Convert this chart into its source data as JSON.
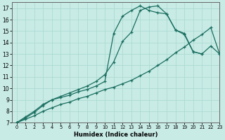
{
  "xlabel": "Humidex (Indice chaleur)",
  "xlim": [
    -0.5,
    23
  ],
  "ylim": [
    7,
    17.5
  ],
  "yticks": [
    7,
    8,
    9,
    10,
    11,
    12,
    13,
    14,
    15,
    16,
    17
  ],
  "xticks": [
    0,
    1,
    2,
    3,
    4,
    5,
    6,
    7,
    8,
    9,
    10,
    11,
    12,
    13,
    14,
    15,
    16,
    17,
    18,
    19,
    20,
    21,
    22,
    23
  ],
  "bg_color": "#c8ebe5",
  "grid_color": "#a8d8d0",
  "line_color": "#1a6e60",
  "line1_x": [
    0,
    1,
    2,
    3,
    4,
    5,
    6,
    7,
    8,
    9,
    10,
    11,
    12,
    13,
    14,
    15,
    16,
    17,
    18,
    19,
    20,
    21,
    22,
    23
  ],
  "line1_y": [
    7.0,
    7.5,
    8.0,
    8.6,
    9.0,
    9.3,
    9.6,
    9.9,
    10.2,
    10.6,
    11.2,
    12.3,
    14.1,
    14.9,
    16.8,
    17.1,
    17.2,
    16.5,
    15.1,
    14.8,
    13.2,
    13.0,
    13.7,
    13.0
  ],
  "line2_x": [
    0,
    1,
    2,
    3,
    4,
    5,
    6,
    7,
    8,
    9,
    10,
    11,
    12,
    13,
    14,
    15,
    16,
    17,
    18,
    19,
    20,
    21
  ],
  "line2_y": [
    7.0,
    7.4,
    7.9,
    8.5,
    9.0,
    9.2,
    9.4,
    9.7,
    9.9,
    10.2,
    10.6,
    14.8,
    16.3,
    16.8,
    17.2,
    16.8,
    16.6,
    16.5,
    15.1,
    14.7,
    13.2,
    13.0
  ],
  "line3_x": [
    0,
    1,
    2,
    3,
    4,
    5,
    6,
    7,
    8,
    9,
    10,
    11,
    12,
    13,
    14,
    15,
    16,
    17,
    18,
    19,
    20,
    21,
    22,
    23
  ],
  "line3_y": [
    7.0,
    7.3,
    7.6,
    8.0,
    8.3,
    8.6,
    8.8,
    9.1,
    9.3,
    9.6,
    9.9,
    10.1,
    10.4,
    10.7,
    11.1,
    11.5,
    12.0,
    12.5,
    13.1,
    13.6,
    14.2,
    14.7,
    15.3,
    13.0
  ]
}
